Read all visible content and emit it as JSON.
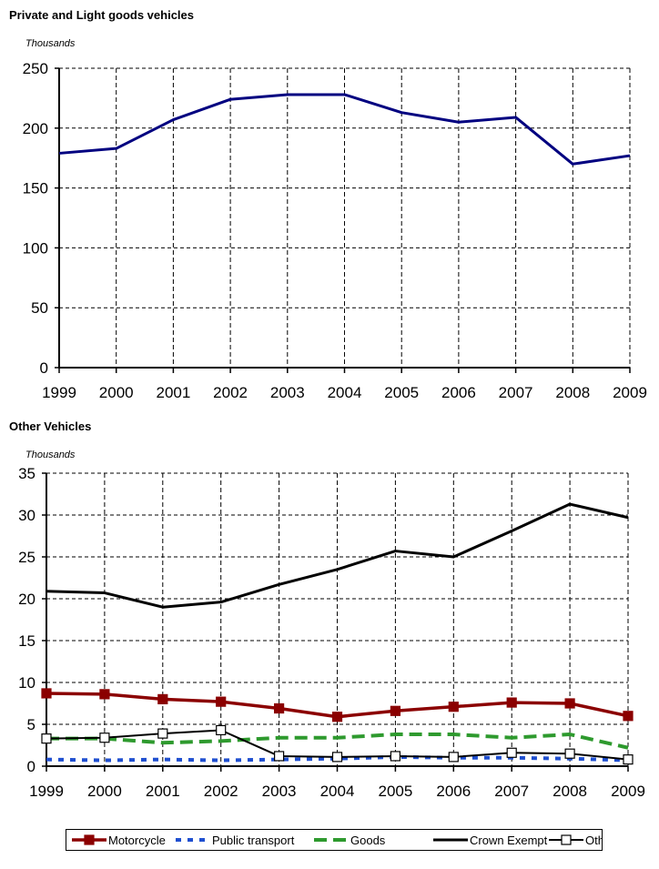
{
  "chart_data": [
    {
      "type": "line",
      "title": "Private and Light goods vehicles",
      "ylabel": "Thousands",
      "xlabel": "",
      "categories": [
        "1999",
        "2000",
        "2001",
        "2002",
        "2003",
        "2004",
        "2005",
        "2006",
        "2007",
        "2008",
        "2009"
      ],
      "yticks": [
        "0",
        "50",
        "100",
        "150",
        "200",
        "250"
      ],
      "ylim": [
        0,
        250
      ],
      "grid": true,
      "series": [
        {
          "name": "",
          "color": "#000080",
          "values": [
            179,
            183,
            207,
            224,
            228,
            228,
            213,
            205,
            209,
            170,
            177
          ]
        }
      ]
    },
    {
      "type": "line",
      "title": "Other Vehicles",
      "ylabel": "Thousands",
      "xlabel": "",
      "categories": [
        "1999",
        "2000",
        "2001",
        "2002",
        "2003",
        "2004",
        "2005",
        "2006",
        "2007",
        "2008",
        "2009"
      ],
      "yticks": [
        "0",
        "5",
        "10",
        "15",
        "20",
        "25",
        "30",
        "35"
      ],
      "ylim": [
        0,
        35
      ],
      "grid": true,
      "legend_position": "bottom",
      "series": [
        {
          "name": "Motorcycle",
          "color": "#8b0000",
          "style": "solid-square",
          "values": [
            8.7,
            8.6,
            8.0,
            7.7,
            6.9,
            5.9,
            6.6,
            7.1,
            7.6,
            7.5,
            6.0
          ]
        },
        {
          "name": "Public transport",
          "color": "#1f4fd0",
          "style": "dotted",
          "values": [
            0.8,
            0.7,
            0.8,
            0.7,
            0.8,
            0.9,
            1.1,
            1.0,
            1.0,
            0.9,
            0.7
          ]
        },
        {
          "name": "Goods",
          "color": "#2e9a2e",
          "style": "dashed",
          "values": [
            3.3,
            3.3,
            2.8,
            3.0,
            3.4,
            3.4,
            3.8,
            3.8,
            3.4,
            3.8,
            2.2
          ]
        },
        {
          "name": "Crown Exempt",
          "color": "#000000",
          "style": "solid",
          "values": [
            20.9,
            20.7,
            19.0,
            19.6,
            21.7,
            23.5,
            25.7,
            25.0,
            28.1,
            31.3,
            29.7
          ]
        },
        {
          "name": "Other",
          "color": "#000000",
          "style": "solid-hollow-square",
          "values": [
            3.3,
            3.4,
            3.9,
            4.3,
            1.2,
            1.1,
            1.2,
            1.1,
            1.6,
            1.5,
            0.8
          ]
        }
      ]
    }
  ]
}
